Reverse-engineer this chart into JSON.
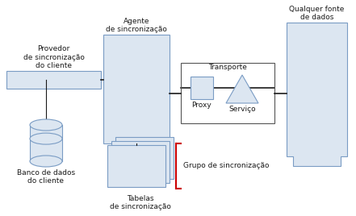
{
  "bg_color": "#ffffff",
  "box_fill": "#dce6f1",
  "box_edge": "#7a9cc4",
  "transport_edge": "#555555",
  "line_color": "#1a1a1a",
  "red_bracket": "#cc0000",
  "text_color": "#1a1a1a",
  "provedor_label": "Provedor\nde sincronização\ndo cliente",
  "agente_label": "Agente\nde sincronização",
  "transporte_label": "Transporte",
  "proxy_label": "Proxy",
  "servico_label": "Serviço",
  "qualquer_label": "Qualquer fonte\nde dados",
  "banco_label": "Banco de dados\ndo cliente",
  "tabelas_label": "Tabelas\nde sincronização",
  "grupo_label": "Grupo de sincronização",
  "font_size": 6.5
}
